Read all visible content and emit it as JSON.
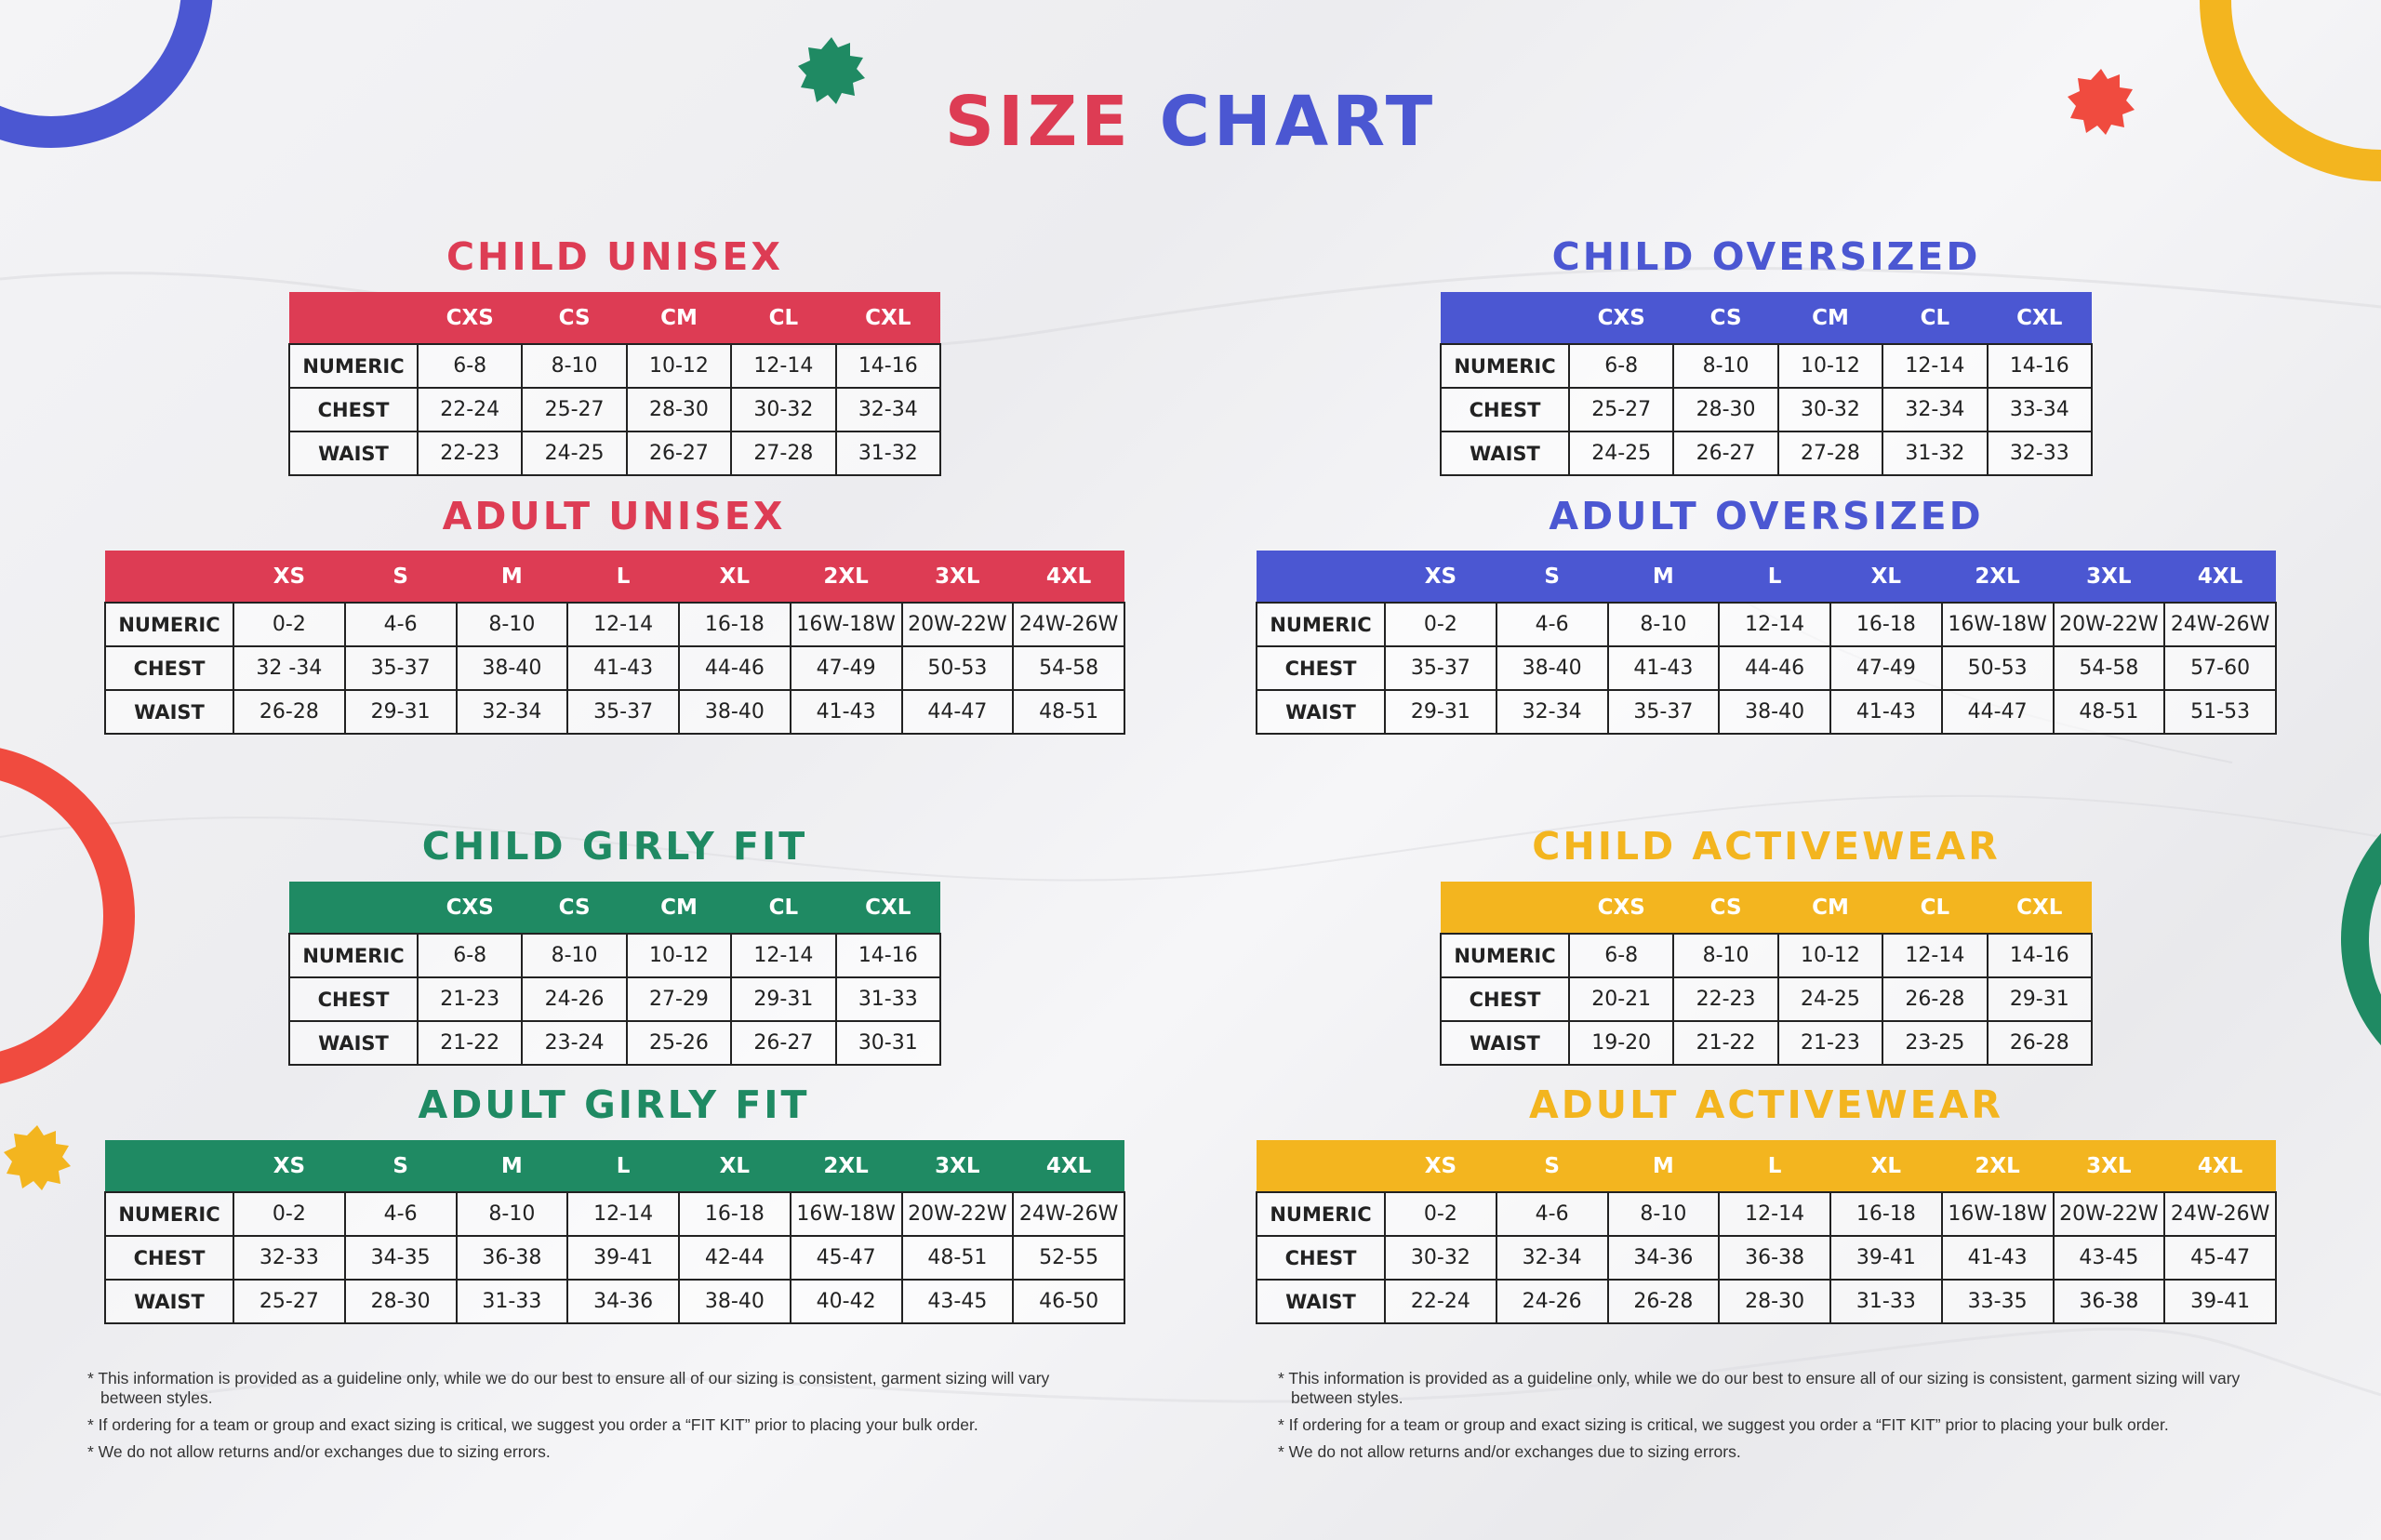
{
  "title": {
    "word1": "SIZE",
    "word2": "CHART"
  },
  "colors": {
    "red": "#dd3c54",
    "blue": "#4b57d2",
    "green": "#1f8a63",
    "yellow": "#f3b51f"
  },
  "child_unisex": {
    "title": "CHILD UNISEX",
    "headers": [
      "",
      "CXS",
      "CS",
      "CM",
      "CL",
      "CXL"
    ],
    "rows": [
      [
        "NUMERIC",
        "6-8",
        "8-10",
        "10-12",
        "12-14",
        "14-16"
      ],
      [
        "CHEST",
        "22-24",
        "25-27",
        "28-30",
        "30-32",
        "32-34"
      ],
      [
        "WAIST",
        "22-23",
        "24-25",
        "26-27",
        "27-28",
        "31-32"
      ]
    ]
  },
  "adult_unisex": {
    "title": "ADULT UNISEX",
    "headers": [
      "",
      "XS",
      "S",
      "M",
      "L",
      "XL",
      "2XL",
      "3XL",
      "4XL"
    ],
    "rows": [
      [
        "NUMERIC",
        "0-2",
        "4-6",
        "8-10",
        "12-14",
        "16-18",
        "16W-18W",
        "20W-22W",
        "24W-26W"
      ],
      [
        "CHEST",
        "32 -34",
        "35-37",
        "38-40",
        "41-43",
        "44-46",
        "47-49",
        "50-53",
        "54-58"
      ],
      [
        "WAIST",
        "26-28",
        "29-31",
        "32-34",
        "35-37",
        "38-40",
        "41-43",
        "44-47",
        "48-51"
      ]
    ]
  },
  "child_oversized": {
    "title": "CHILD OVERSIZED",
    "headers": [
      "",
      "CXS",
      "CS",
      "CM",
      "CL",
      "CXL"
    ],
    "rows": [
      [
        "NUMERIC",
        "6-8",
        "8-10",
        "10-12",
        "12-14",
        "14-16"
      ],
      [
        "CHEST",
        "25-27",
        "28-30",
        "30-32",
        "32-34",
        "33-34"
      ],
      [
        "WAIST",
        "24-25",
        "26-27",
        "27-28",
        "31-32",
        "32-33"
      ]
    ]
  },
  "adult_oversized": {
    "title": "ADULT OVERSIZED",
    "headers": [
      "",
      "XS",
      "S",
      "M",
      "L",
      "XL",
      "2XL",
      "3XL",
      "4XL"
    ],
    "rows": [
      [
        "NUMERIC",
        "0-2",
        "4-6",
        "8-10",
        "12-14",
        "16-18",
        "16W-18W",
        "20W-22W",
        "24W-26W"
      ],
      [
        "CHEST",
        "35-37",
        "38-40",
        "41-43",
        "44-46",
        "47-49",
        "50-53",
        "54-58",
        "57-60"
      ],
      [
        "WAIST",
        "29-31",
        "32-34",
        "35-37",
        "38-40",
        "41-43",
        "44-47",
        "48-51",
        "51-53"
      ]
    ]
  },
  "child_girly": {
    "title": "CHILD GIRLY FIT",
    "headers": [
      "",
      "CXS",
      "CS",
      "CM",
      "CL",
      "CXL"
    ],
    "rows": [
      [
        "NUMERIC",
        "6-8",
        "8-10",
        "10-12",
        "12-14",
        "14-16"
      ],
      [
        "CHEST",
        "21-23",
        "24-26",
        "27-29",
        "29-31",
        "31-33"
      ],
      [
        "WAIST",
        "21-22",
        "23-24",
        "25-26",
        "26-27",
        "30-31"
      ]
    ]
  },
  "adult_girly": {
    "title": "ADULT GIRLY FIT",
    "headers": [
      "",
      "XS",
      "S",
      "M",
      "L",
      "XL",
      "2XL",
      "3XL",
      "4XL"
    ],
    "rows": [
      [
        "NUMERIC",
        "0-2",
        "4-6",
        "8-10",
        "12-14",
        "16-18",
        "16W-18W",
        "20W-22W",
        "24W-26W"
      ],
      [
        "CHEST",
        "32-33",
        "34-35",
        "36-38",
        "39-41",
        "42-44",
        "45-47",
        "48-51",
        "52-55"
      ],
      [
        "WAIST",
        "25-27",
        "28-30",
        "31-33",
        "34-36",
        "38-40",
        "40-42",
        "43-45",
        "46-50"
      ]
    ]
  },
  "child_active": {
    "title": "CHILD ACTIVEWEAR",
    "headers": [
      "",
      "CXS",
      "CS",
      "CM",
      "CL",
      "CXL"
    ],
    "rows": [
      [
        "NUMERIC",
        "6-8",
        "8-10",
        "10-12",
        "12-14",
        "14-16"
      ],
      [
        "CHEST",
        "20-21",
        "22-23",
        "24-25",
        "26-28",
        "29-31"
      ],
      [
        "WAIST",
        "19-20",
        "21-22",
        "21-23",
        "23-25",
        "26-28"
      ]
    ]
  },
  "adult_active": {
    "title": "ADULT ACTIVEWEAR",
    "headers": [
      "",
      "XS",
      "S",
      "M",
      "L",
      "XL",
      "2XL",
      "3XL",
      "4XL"
    ],
    "rows": [
      [
        "NUMERIC",
        "0-2",
        "4-6",
        "8-10",
        "12-14",
        "16-18",
        "16W-18W",
        "20W-22W",
        "24W-26W"
      ],
      [
        "CHEST",
        "30-32",
        "32-34",
        "34-36",
        "36-38",
        "39-41",
        "41-43",
        "43-45",
        "45-47"
      ],
      [
        "WAIST",
        "22-24",
        "24-26",
        "26-28",
        "28-30",
        "31-33",
        "33-35",
        "36-38",
        "39-41"
      ]
    ]
  },
  "notes": [
    "* This information is provided as a guideline only, while we do our best to ensure all of our sizing is consistent, garment sizing will vary between styles.",
    "* If ordering for a team or group and exact sizing is critical, we suggest you order a “FIT KIT” prior to placing your bulk order.",
    "* We do not allow returns and/or exchanges due to sizing errors."
  ]
}
